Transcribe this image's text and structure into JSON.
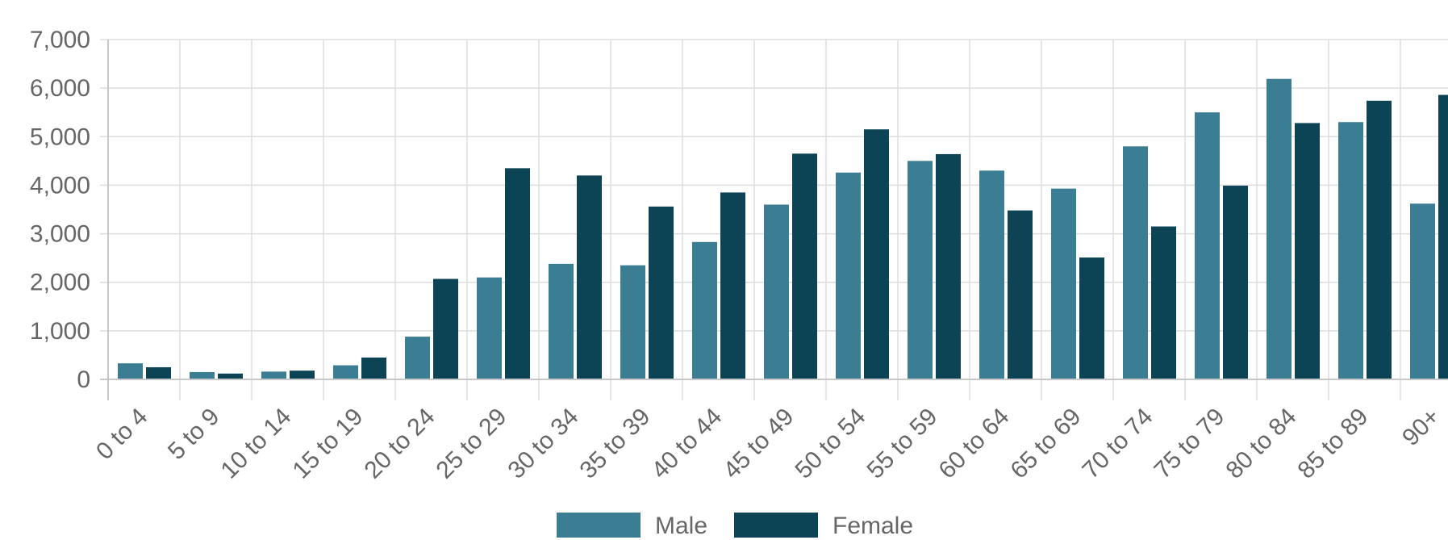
{
  "chart_data": {
    "type": "bar",
    "categories": [
      "0 to 4",
      "5 to 9",
      "10 to 14",
      "15 to 19",
      "20 to 24",
      "25 to 29",
      "30 to 34",
      "35 to 39",
      "40 to 44",
      "45 to 49",
      "50 to 54",
      "55 to 59",
      "60 to 64",
      "65 to 69",
      "70 to 74",
      "75 to 79",
      "80 to 84",
      "85 to 89",
      "90+"
    ],
    "series": [
      {
        "name": "Male",
        "color": "#3b7d92",
        "values": [
          330,
          150,
          160,
          290,
          880,
          2100,
          2380,
          2350,
          2830,
          3600,
          4260,
          4500,
          4300,
          3930,
          4800,
          5500,
          6190,
          5300,
          3620
        ]
      },
      {
        "name": "Female",
        "color": "#0c4456",
        "values": [
          250,
          120,
          180,
          450,
          2070,
          4350,
          4200,
          3560,
          3850,
          4650,
          5150,
          4640,
          3480,
          2510,
          3150,
          3990,
          5280,
          5740,
          5860
        ]
      }
    ],
    "y_ticks": [
      "0",
      "1,000",
      "2,000",
      "3,000",
      "4,000",
      "5,000",
      "6,000",
      "7,000"
    ],
    "ylim": [
      0,
      7000
    ],
    "grid": true,
    "legend_position": "bottom",
    "title": "",
    "xlabel": "",
    "ylabel": ""
  }
}
